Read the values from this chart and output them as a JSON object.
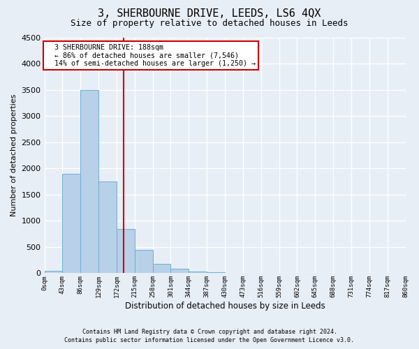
{
  "title": "3, SHERBOURNE DRIVE, LEEDS, LS6 4QX",
  "subtitle": "Size of property relative to detached houses in Leeds",
  "xlabel": "Distribution of detached houses by size in Leeds",
  "ylabel": "Number of detached properties",
  "footnote1": "Contains HM Land Registry data © Crown copyright and database right 2024.",
  "footnote2": "Contains public sector information licensed under the Open Government Licence v3.0.",
  "bin_edges": [
    0,
    43,
    86,
    129,
    172,
    215,
    258,
    301,
    344,
    387,
    430,
    473,
    516,
    559,
    602,
    645,
    688,
    731,
    774,
    817,
    860
  ],
  "bin_labels": [
    "0sqm",
    "43sqm",
    "86sqm",
    "129sqm",
    "172sqm",
    "215sqm",
    "258sqm",
    "301sqm",
    "344sqm",
    "387sqm",
    "430sqm",
    "473sqm",
    "516sqm",
    "559sqm",
    "602sqm",
    "645sqm",
    "688sqm",
    "731sqm",
    "774sqm",
    "817sqm",
    "860sqm"
  ],
  "bar_heights": [
    50,
    1900,
    3500,
    1750,
    850,
    450,
    175,
    90,
    30,
    15,
    5,
    0,
    0,
    0,
    0,
    0,
    0,
    0,
    0,
    0
  ],
  "bar_color": "#b8d0e8",
  "bar_edge_color": "#6aafd4",
  "property_size": 188,
  "vline_color": "#cc0000",
  "vline_x": 188,
  "annotation_title": "3 SHERBOURNE DRIVE: 188sqm",
  "annotation_line1": "← 86% of detached houses are smaller (7,546)",
  "annotation_line2": "14% of semi-detached houses are larger (1,250) →",
  "box_color": "#cc0000",
  "ylim": [
    0,
    4500
  ],
  "yticks": [
    0,
    500,
    1000,
    1500,
    2000,
    2500,
    3000,
    3500,
    4000,
    4500
  ],
  "background_color": "#e8eef5",
  "plot_bg_color": "#e8eef5",
  "title_fontsize": 11,
  "subtitle_fontsize": 9
}
